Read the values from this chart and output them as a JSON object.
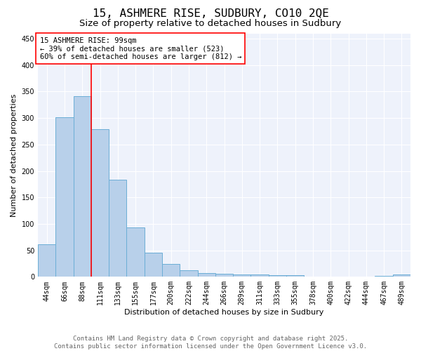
{
  "title_line1": "15, ASHMERE RISE, SUDBURY, CO10 2QE",
  "title_line2": "Size of property relative to detached houses in Sudbury",
  "xlabel": "Distribution of detached houses by size in Sudbury",
  "ylabel": "Number of detached properties",
  "bar_labels": [
    "44sqm",
    "66sqm",
    "88sqm",
    "111sqm",
    "133sqm",
    "155sqm",
    "177sqm",
    "200sqm",
    "222sqm",
    "244sqm",
    "266sqm",
    "289sqm",
    "311sqm",
    "333sqm",
    "355sqm",
    "378sqm",
    "400sqm",
    "422sqm",
    "444sqm",
    "467sqm",
    "489sqm"
  ],
  "bar_values": [
    62,
    301,
    341,
    279,
    184,
    93,
    45,
    24,
    13,
    7,
    6,
    4,
    5,
    3,
    3,
    0,
    1,
    0,
    0,
    2,
    4
  ],
  "bar_color": "#b8d0ea",
  "bar_edge_color": "#6baed6",
  "bar_linewidth": 0.7,
  "vline_x": 2.5,
  "vline_color": "red",
  "vline_linewidth": 1.2,
  "ylim": [
    0,
    460
  ],
  "yticks": [
    0,
    50,
    100,
    150,
    200,
    250,
    300,
    350,
    400,
    450
  ],
  "annotation_text": "15 ASHMERE RISE: 99sqm\n← 39% of detached houses are smaller (523)\n60% of semi-detached houses are larger (812) →",
  "annotation_box_color": "white",
  "annotation_box_edge": "red",
  "background_color": "#eef2fb",
  "grid_color": "white",
  "footer_text": "Contains HM Land Registry data © Crown copyright and database right 2025.\nContains public sector information licensed under the Open Government Licence v3.0.",
  "title_fontsize": 11.5,
  "subtitle_fontsize": 9.5,
  "axis_label_fontsize": 8,
  "tick_label_fontsize": 7,
  "annotation_fontsize": 7.5,
  "footer_fontsize": 6.5
}
